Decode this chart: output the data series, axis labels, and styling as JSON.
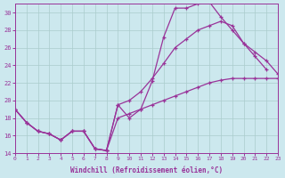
{
  "bg_color": "#cce8ee",
  "grid_color": "#aacccc",
  "line_color": "#993399",
  "xlabel": "Windchill (Refroidissement éolien,°C)",
  "xlim": [
    0,
    23
  ],
  "ylim": [
    14,
    31
  ],
  "xticks": [
    0,
    1,
    2,
    3,
    4,
    5,
    6,
    7,
    8,
    9,
    10,
    11,
    12,
    13,
    14,
    15,
    16,
    17,
    18,
    19,
    20,
    21,
    22,
    23
  ],
  "yticks": [
    14,
    16,
    18,
    20,
    22,
    24,
    26,
    28,
    30
  ],
  "curve1_x": [
    0,
    1,
    2,
    3,
    4,
    5,
    6,
    7,
    8,
    9,
    10,
    11,
    12,
    13,
    14,
    15,
    16,
    17,
    18,
    19,
    20,
    21,
    22
  ],
  "curve1_y": [
    19.0,
    17.5,
    16.5,
    16.2,
    15.5,
    16.5,
    16.5,
    14.5,
    14.3,
    19.5,
    18.0,
    19.0,
    22.2,
    27.2,
    30.5,
    30.5,
    31.0,
    31.2,
    29.5,
    28.0,
    26.5,
    25.0,
    23.5
  ],
  "curve2_x": [
    0,
    1,
    2,
    3,
    4,
    5,
    6,
    7,
    8,
    9,
    10,
    11,
    12,
    13,
    14,
    15,
    16,
    17,
    18,
    19,
    20,
    21,
    22,
    23
  ],
  "curve2_y": [
    19.0,
    17.5,
    16.5,
    16.2,
    15.5,
    16.5,
    16.5,
    14.5,
    14.3,
    19.5,
    20.0,
    21.0,
    22.5,
    24.2,
    26.0,
    27.0,
    28.0,
    28.5,
    29.0,
    28.5,
    26.5,
    25.5,
    24.5,
    23.0
  ],
  "curve3_x": [
    0,
    1,
    2,
    3,
    4,
    5,
    6,
    7,
    8,
    9,
    10,
    11,
    12,
    13,
    14,
    15,
    16,
    17,
    18,
    19,
    20,
    21,
    22,
    23
  ],
  "curve3_y": [
    19.0,
    17.5,
    16.5,
    16.2,
    15.5,
    16.5,
    16.5,
    14.5,
    14.3,
    18.0,
    18.5,
    19.0,
    19.5,
    20.0,
    20.5,
    21.0,
    21.5,
    22.0,
    22.3,
    22.5,
    22.5,
    22.5,
    22.5,
    22.5
  ]
}
